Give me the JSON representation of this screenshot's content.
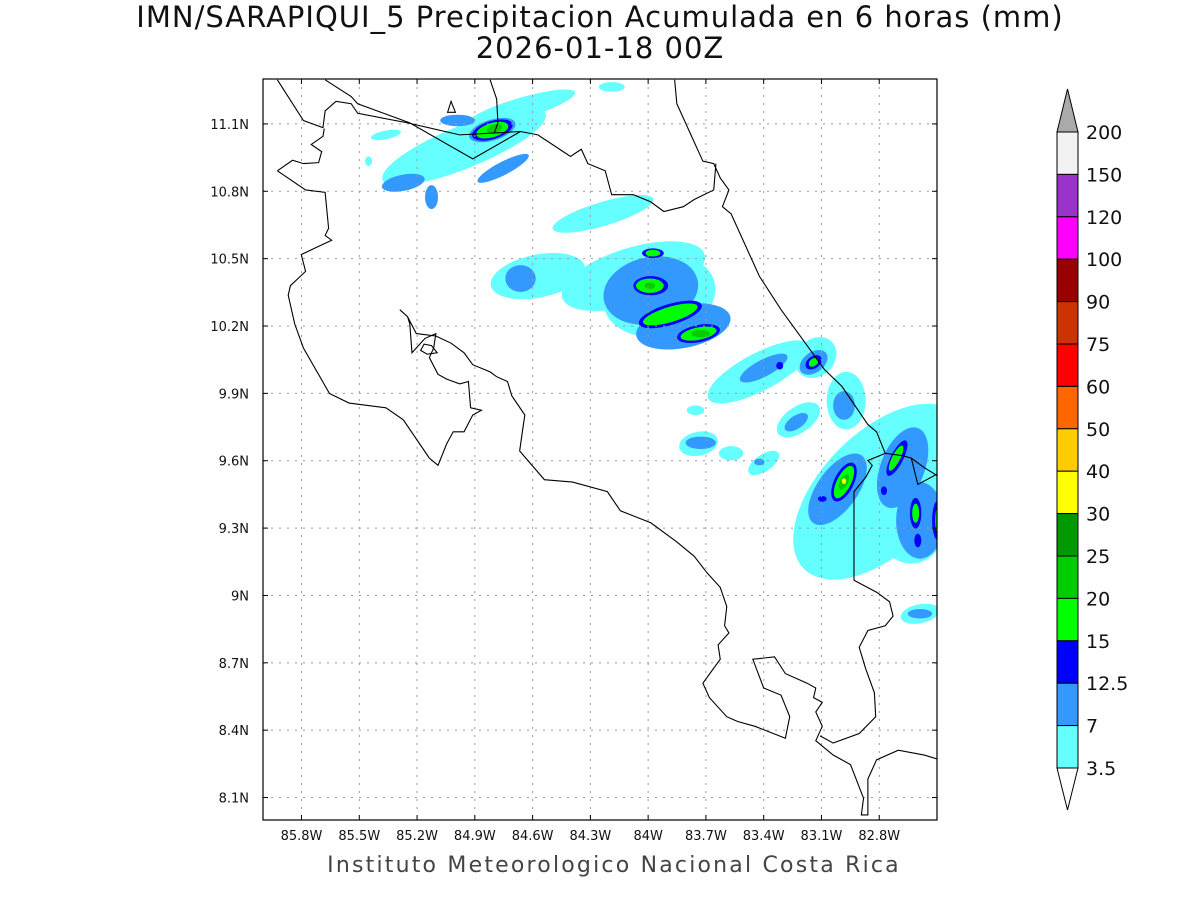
{
  "title": {
    "line1": "IMN/SARAPIQUI_5 Precipitacion Acumulada en 6 horas (mm)",
    "line2": "2026-01-18 00Z"
  },
  "footer": "Instituto Meteorologico Nacional Costa Rica",
  "chart_data": {
    "type": "heatmap",
    "variable": "Precipitacion Acumulada en 6 horas (mm)",
    "lon_range": [
      -86.0,
      -82.5
    ],
    "lat_range": [
      8.0,
      11.3
    ],
    "grid": true,
    "x_ticks": [
      "85.8W",
      "85.5W",
      "85.2W",
      "84.9W",
      "84.6W",
      "84.3W",
      "84W",
      "83.7W",
      "83.4W",
      "83.1W",
      "82.8W"
    ],
    "x_tick_values": [
      -85.8,
      -85.5,
      -85.2,
      -84.9,
      -84.6,
      -84.3,
      -84.0,
      -83.7,
      -83.4,
      -83.1,
      -82.8
    ],
    "y_ticks": [
      "11.1N",
      "10.8N",
      "10.5N",
      "10.2N",
      "9.9N",
      "9.6N",
      "9.3N",
      "9N",
      "8.7N",
      "8.4N",
      "8.1N"
    ],
    "y_tick_values": [
      11.1,
      10.8,
      10.5,
      10.2,
      9.9,
      9.6,
      9.3,
      9.0,
      8.7,
      8.4,
      8.1
    ],
    "colorbar": {
      "labels": [
        "200",
        "150",
        "120",
        "100",
        "90",
        "75",
        "60",
        "50",
        "40",
        "30",
        "25",
        "20",
        "15",
        "12.5",
        "7",
        "3.5"
      ],
      "colors": [
        "#f2f2f2",
        "#9933cc",
        "#ff00ff",
        "#990000",
        "#cc3300",
        "#ff0000",
        "#ff6600",
        "#ffcc00",
        "#ffff00",
        "#009900",
        "#00cc00",
        "#00ff00",
        "#0000ff",
        "#3399ff",
        "#66ffff"
      ],
      "over_color": "#aaaaaa",
      "under_color": "#ffffff"
    }
  }
}
